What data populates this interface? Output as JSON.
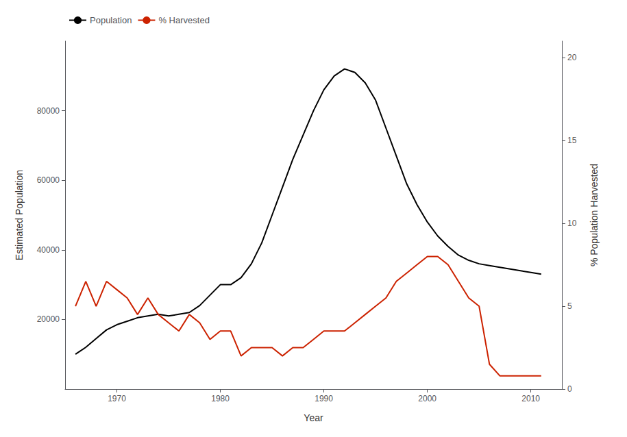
{
  "chart_data": {
    "type": "line",
    "xlabel": "Year",
    "ylabel": "Estimated Population",
    "y2label": "% Population Harvested",
    "x": [
      1966,
      1967,
      1968,
      1969,
      1970,
      1971,
      1972,
      1973,
      1974,
      1975,
      1976,
      1977,
      1978,
      1979,
      1980,
      1981,
      1982,
      1983,
      1984,
      1985,
      1986,
      1987,
      1988,
      1989,
      1990,
      1991,
      1992,
      1993,
      1994,
      1995,
      1996,
      1997,
      1998,
      1999,
      2000,
      2001,
      2002,
      2003,
      2004,
      2005,
      2006,
      2007,
      2008,
      2009,
      2010,
      2011
    ],
    "series": [
      {
        "name": "Population",
        "color": "#000000",
        "axis": "y",
        "values": [
          10000,
          12000,
          14500,
          17000,
          18500,
          19500,
          20500,
          21000,
          21500,
          21000,
          21500,
          22000,
          24000,
          27000,
          30000,
          30000,
          32000,
          36000,
          42000,
          50000,
          58000,
          66000,
          73000,
          80000,
          86000,
          90000,
          92000,
          91000,
          88000,
          83000,
          75000,
          67000,
          59000,
          53000,
          48000,
          44000,
          41000,
          38500,
          37000,
          36000,
          35500,
          35000,
          34500,
          34000,
          33500,
          33000
        ]
      },
      {
        "name": "% Harvested",
        "color": "#CC2200",
        "axis": "y2",
        "values": [
          5.0,
          6.5,
          5.0,
          6.5,
          6.0,
          5.5,
          4.5,
          5.5,
          4.5,
          4.0,
          3.5,
          4.5,
          4.0,
          3.0,
          3.5,
          3.5,
          2.0,
          2.5,
          2.5,
          2.5,
          2.0,
          2.5,
          2.5,
          3.0,
          3.5,
          3.5,
          3.5,
          4.0,
          4.5,
          5.0,
          5.5,
          6.5,
          7.0,
          7.5,
          8.0,
          8.0,
          7.5,
          6.5,
          5.5,
          5.0,
          1.5,
          0.8,
          0.8,
          0.8,
          0.8,
          0.8
        ]
      }
    ],
    "xlim": [
      1965,
      2013
    ],
    "xticks": [
      1970,
      1980,
      1990,
      2000,
      2010
    ],
    "ylim": [
      0,
      100000
    ],
    "yticks": [
      20000,
      40000,
      60000,
      80000
    ],
    "y2lim": [
      0,
      21
    ],
    "y2ticks": [
      0,
      5,
      10,
      15,
      20
    ],
    "legend": "upper left",
    "grid": false
  }
}
